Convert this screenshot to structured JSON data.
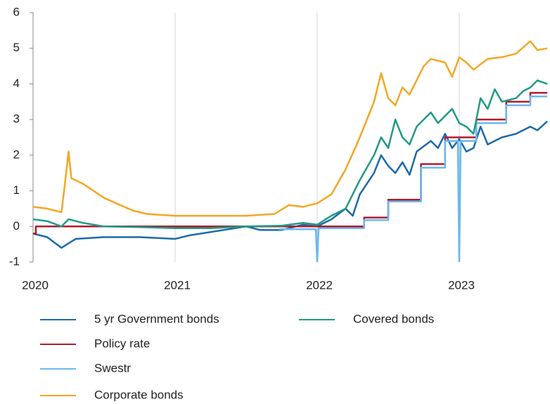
{
  "chart_data": {
    "type": "line",
    "xlim": [
      2020,
      2023.62
    ],
    "xticks": [
      2020,
      2021,
      2022,
      2023
    ],
    "ylim": [
      -1,
      6
    ],
    "yticks": [
      -1,
      0,
      1,
      2,
      3,
      4,
      5,
      6
    ],
    "grid": true,
    "series": [
      {
        "name": "5 yr Government bonds",
        "color": "#1b6aaa",
        "x": [
          2020,
          2020.1,
          2020.2,
          2020.3,
          2020.5,
          2020.75,
          2021.0,
          2021.1,
          2021.5,
          2021.6,
          2021.75,
          2021.9,
          2022.0,
          2022.1,
          2022.2,
          2022.25,
          2022.3,
          2022.35,
          2022.4,
          2022.45,
          2022.5,
          2022.55,
          2022.6,
          2022.65,
          2022.7,
          2022.8,
          2022.85,
          2022.9,
          2022.95,
          2023.0,
          2023.05,
          2023.1,
          2023.15,
          2023.2,
          2023.3,
          2023.4,
          2023.5,
          2023.55,
          2023.62
        ],
        "values": [
          -0.2,
          -0.3,
          -0.6,
          -0.35,
          -0.3,
          -0.3,
          -0.35,
          -0.25,
          0,
          -0.1,
          -0.1,
          0.05,
          0,
          0.2,
          0.5,
          0.3,
          0.9,
          1.2,
          1.5,
          2.0,
          1.7,
          1.5,
          1.8,
          1.45,
          2.1,
          2.4,
          2.2,
          2.6,
          2.2,
          2.45,
          2.1,
          2.2,
          2.8,
          2.3,
          2.5,
          2.6,
          2.8,
          2.7,
          2.95
        ]
      },
      {
        "name": "Policy rate",
        "color": "#b01c2e",
        "x": [
          2020,
          2020.02,
          2020.02,
          2022.33,
          2022.33,
          2022.5,
          2022.5,
          2022.73,
          2022.73,
          2022.9,
          2022.9,
          2023.12,
          2023.12,
          2023.33,
          2023.33,
          2023.5,
          2023.5,
          2023.62
        ],
        "values": [
          -0.2,
          -0.2,
          0,
          0,
          0.25,
          0.25,
          0.75,
          0.75,
          1.75,
          1.75,
          2.5,
          2.5,
          3,
          3,
          3.5,
          3.5,
          3.75,
          3.75
        ]
      },
      {
        "name": "Swestr",
        "color": "#6ab8ef",
        "x": [
          2021.73,
          2021.99,
          2022.0,
          2022.01,
          2022.33,
          2022.33,
          2022.5,
          2022.5,
          2022.73,
          2022.73,
          2022.9,
          2022.9,
          2022.99,
          2023.0,
          2023.01,
          2023.12,
          2023.12,
          2023.33,
          2023.33,
          2023.5,
          2023.5,
          2023.62
        ],
        "values": [
          -0.08,
          -0.08,
          -1,
          -0.05,
          -0.05,
          0.18,
          0.18,
          0.7,
          0.7,
          1.65,
          1.65,
          2.4,
          2.4,
          -1,
          2.4,
          2.4,
          2.9,
          2.9,
          3.4,
          3.4,
          3.65,
          3.65
        ]
      },
      {
        "name": "Corporate bonds",
        "color": "#f5a623",
        "x": [
          2020,
          2020.1,
          2020.2,
          2020.23,
          2020.25,
          2020.27,
          2020.35,
          2020.5,
          2020.7,
          2020.8,
          2021.0,
          2021.25,
          2021.5,
          2021.7,
          2021.8,
          2021.9,
          2022.0,
          2022.1,
          2022.2,
          2022.3,
          2022.4,
          2022.45,
          2022.5,
          2022.55,
          2022.6,
          2022.65,
          2022.75,
          2022.8,
          2022.9,
          2022.95,
          2023.0,
          2023.05,
          2023.1,
          2023.2,
          2023.3,
          2023.4,
          2023.5,
          2023.55,
          2023.62
        ],
        "values": [
          0.55,
          0.5,
          0.4,
          1.4,
          2.1,
          1.35,
          1.2,
          0.8,
          0.45,
          0.35,
          0.3,
          0.3,
          0.3,
          0.35,
          0.6,
          0.55,
          0.65,
          0.9,
          1.6,
          2.5,
          3.5,
          4.3,
          3.6,
          3.4,
          3.9,
          3.7,
          4.5,
          4.7,
          4.6,
          4.2,
          4.75,
          4.6,
          4.4,
          4.7,
          4.75,
          4.85,
          5.2,
          4.95,
          5.0
        ]
      },
      {
        "name": "Covered bonds",
        "color": "#1f9a86",
        "x": [
          2020,
          2020.1,
          2020.2,
          2020.25,
          2020.35,
          2020.5,
          2020.75,
          2021.0,
          2021.25,
          2021.5,
          2021.75,
          2021.9,
          2022.0,
          2022.1,
          2022.2,
          2022.3,
          2022.4,
          2022.45,
          2022.5,
          2022.55,
          2022.6,
          2022.65,
          2022.7,
          2022.8,
          2022.85,
          2022.95,
          2023.0,
          2023.05,
          2023.1,
          2023.15,
          2023.2,
          2023.25,
          2023.3,
          2023.4,
          2023.45,
          2023.5,
          2023.55,
          2023.62
        ],
        "values": [
          0.2,
          0.15,
          0.0,
          0.2,
          0.1,
          0.0,
          -0.02,
          -0.05,
          -0.05,
          0.0,
          0.02,
          0.1,
          0.05,
          0.3,
          0.5,
          1.3,
          2.0,
          2.5,
          2.2,
          3.0,
          2.5,
          2.3,
          2.8,
          3.2,
          2.9,
          3.3,
          2.9,
          2.8,
          2.6,
          3.6,
          3.3,
          3.85,
          3.5,
          3.6,
          3.8,
          3.9,
          4.1,
          4.0
        ]
      }
    ]
  }
}
